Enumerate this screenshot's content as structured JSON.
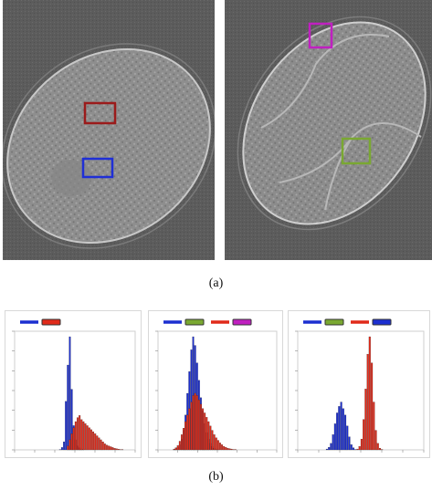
{
  "caption_a": "(a)",
  "caption_b": "(b)",
  "colors": {
    "roi_red": "#9b1b1b",
    "roi_blue": "#1f2fd6",
    "roi_magenta": "#c020c0",
    "roi_green": "#7aa832",
    "series_blue": "#1c2fd0",
    "series_red": "#e02a1a"
  },
  "chart_data": [
    {
      "type": "bar",
      "title": "",
      "legend": [
        "blue",
        "red"
      ],
      "series": [
        {
          "color": "blue",
          "values": [
            0,
            0,
            0,
            0,
            0,
            0,
            0,
            0,
            0,
            0,
            0,
            0,
            0,
            0,
            0,
            0,
            0,
            0,
            0,
            0,
            0,
            0,
            1,
            6,
            20,
            120,
            210,
            280,
            150,
            60,
            25,
            10,
            5,
            2,
            1,
            0,
            0,
            0,
            0,
            0,
            0,
            0,
            0,
            0,
            0,
            0,
            0,
            0,
            0,
            0,
            0,
            0,
            0,
            0,
            0,
            0,
            0,
            0,
            0,
            0
          ]
        },
        {
          "color": "red",
          "values": [
            0,
            0,
            0,
            0,
            0,
            0,
            0,
            0,
            0,
            0,
            0,
            0,
            0,
            0,
            0,
            0,
            0,
            0,
            0,
            0,
            0,
            0,
            0,
            0,
            0,
            0,
            10,
            25,
            40,
            55,
            70,
            80,
            85,
            75,
            70,
            65,
            60,
            55,
            50,
            45,
            40,
            35,
            30,
            25,
            20,
            15,
            12,
            10,
            8,
            6,
            4,
            3,
            2,
            1,
            1,
            0,
            0,
            0,
            0,
            0
          ]
        }
      ],
      "xlim": [
        0,
        59
      ]
    },
    {
      "type": "bar",
      "title": "",
      "legend": [
        "blue",
        "green",
        "red",
        "magenta"
      ],
      "series": [
        {
          "color": "blue",
          "values": [
            0,
            0,
            0,
            0,
            0,
            0,
            0,
            1,
            3,
            6,
            12,
            25,
            45,
            80,
            130,
            180,
            230,
            260,
            240,
            200,
            160,
            120,
            90,
            60,
            40,
            25,
            15,
            8,
            4,
            2,
            1,
            0,
            0,
            0,
            0,
            0,
            0,
            0,
            0,
            0,
            0,
            0,
            0,
            0,
            0,
            0,
            0,
            0,
            0,
            0,
            0,
            0,
            0,
            0,
            0,
            0,
            0,
            0,
            0,
            0
          ]
        },
        {
          "color": "red",
          "values": [
            0,
            0,
            0,
            0,
            0,
            0,
            0,
            2,
            5,
            10,
            20,
            35,
            50,
            65,
            80,
            95,
            110,
            125,
            130,
            125,
            115,
            105,
            95,
            85,
            75,
            65,
            55,
            45,
            35,
            28,
            22,
            16,
            12,
            8,
            6,
            4,
            3,
            2,
            1,
            1,
            0,
            0,
            0,
            0,
            0,
            0,
            0,
            0,
            0,
            0,
            0,
            0,
            0,
            0,
            0,
            0,
            0,
            0,
            0,
            0
          ]
        }
      ],
      "xlim": [
        0,
        59
      ]
    },
    {
      "type": "bar",
      "title": "",
      "legend": [
        "blue",
        "green",
        "red",
        "blue"
      ],
      "series": [
        {
          "color": "blue",
          "values": [
            0,
            0,
            0,
            0,
            0,
            0,
            0,
            0,
            0,
            0,
            0,
            0,
            0,
            2,
            6,
            15,
            35,
            60,
            85,
            100,
            110,
            95,
            80,
            55,
            30,
            12,
            5,
            1,
            0,
            0,
            0,
            0,
            0,
            0,
            0,
            0,
            0,
            0,
            0,
            0,
            0,
            0,
            0,
            0,
            0,
            0,
            0,
            0,
            0,
            0,
            0,
            0,
            0,
            0,
            0,
            0,
            0,
            0,
            0,
            0
          ]
        },
        {
          "color": "red",
          "values": [
            0,
            0,
            0,
            0,
            0,
            0,
            0,
            0,
            0,
            0,
            0,
            0,
            0,
            0,
            0,
            0,
            0,
            0,
            0,
            0,
            0,
            0,
            0,
            0,
            0,
            0,
            0,
            0,
            2,
            8,
            25,
            70,
            140,
            220,
            260,
            200,
            110,
            45,
            15,
            4,
            1,
            0,
            0,
            0,
            0,
            0,
            0,
            0,
            0,
            0,
            0,
            0,
            0,
            0,
            0,
            0,
            0,
            0,
            0,
            0
          ]
        }
      ],
      "xlim": [
        0,
        59
      ]
    }
  ]
}
